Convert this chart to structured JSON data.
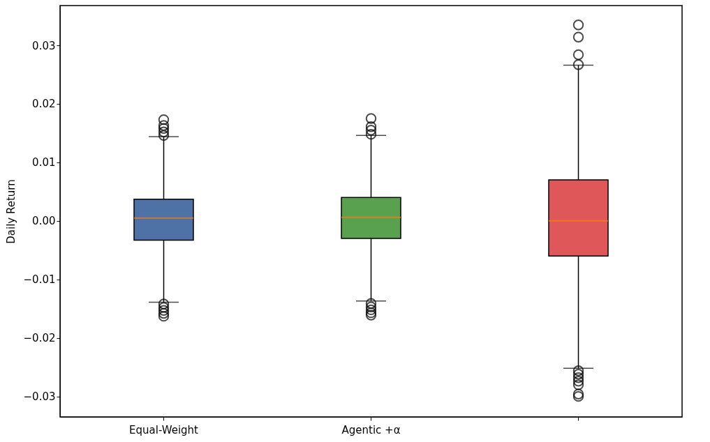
{
  "chart_data": {
    "type": "box",
    "categories": [
      "Equal-Weight",
      "Agentic +α",
      null
    ],
    "ylabel": "Daily Return",
    "colors": [
      "#4e72a6",
      "#59a14f",
      "#e05759"
    ],
    "ylim": [
      -0.0335,
      0.0368
    ],
    "yticks": [
      {
        "value": -0.03,
        "label": "−0.03"
      },
      {
        "value": -0.02,
        "label": "−0.02"
      },
      {
        "value": -0.01,
        "label": "−0.01"
      },
      {
        "value": 0,
        "label": "0.00"
      },
      {
        "value": 0.01,
        "label": "0.01"
      },
      {
        "value": 0.02,
        "label": "0.02"
      },
      {
        "value": 0.03,
        "label": "0.03"
      }
    ],
    "grid": false,
    "boxes": [
      {
        "low": -0.0139,
        "q1": -0.0033,
        "median": 0.0005,
        "q3": 0.0037,
        "high": 0.0144,
        "outliers": [
          0.0146,
          0.0152,
          0.0158,
          0.0163,
          0.0173,
          -0.0142,
          -0.0148,
          -0.0153,
          -0.0158,
          -0.0163
        ]
      },
      {
        "low": -0.0137,
        "q1": -0.003,
        "median": 0.0006,
        "q3": 0.004,
        "high": 0.0146,
        "outliers": [
          0.0148,
          0.0155,
          0.0161,
          0.0175,
          -0.0141,
          -0.0147,
          -0.0152,
          -0.0157,
          -0.0161
        ]
      },
      {
        "low": -0.0252,
        "q1": -0.006,
        "median": 0.0,
        "q3": 0.007,
        "high": 0.0266,
        "outliers": [
          0.0267,
          0.0284,
          0.0314,
          0.0335,
          -0.0256,
          -0.0262,
          -0.0268,
          -0.0274,
          -0.028,
          -0.0296,
          -0.03
        ]
      }
    ]
  }
}
